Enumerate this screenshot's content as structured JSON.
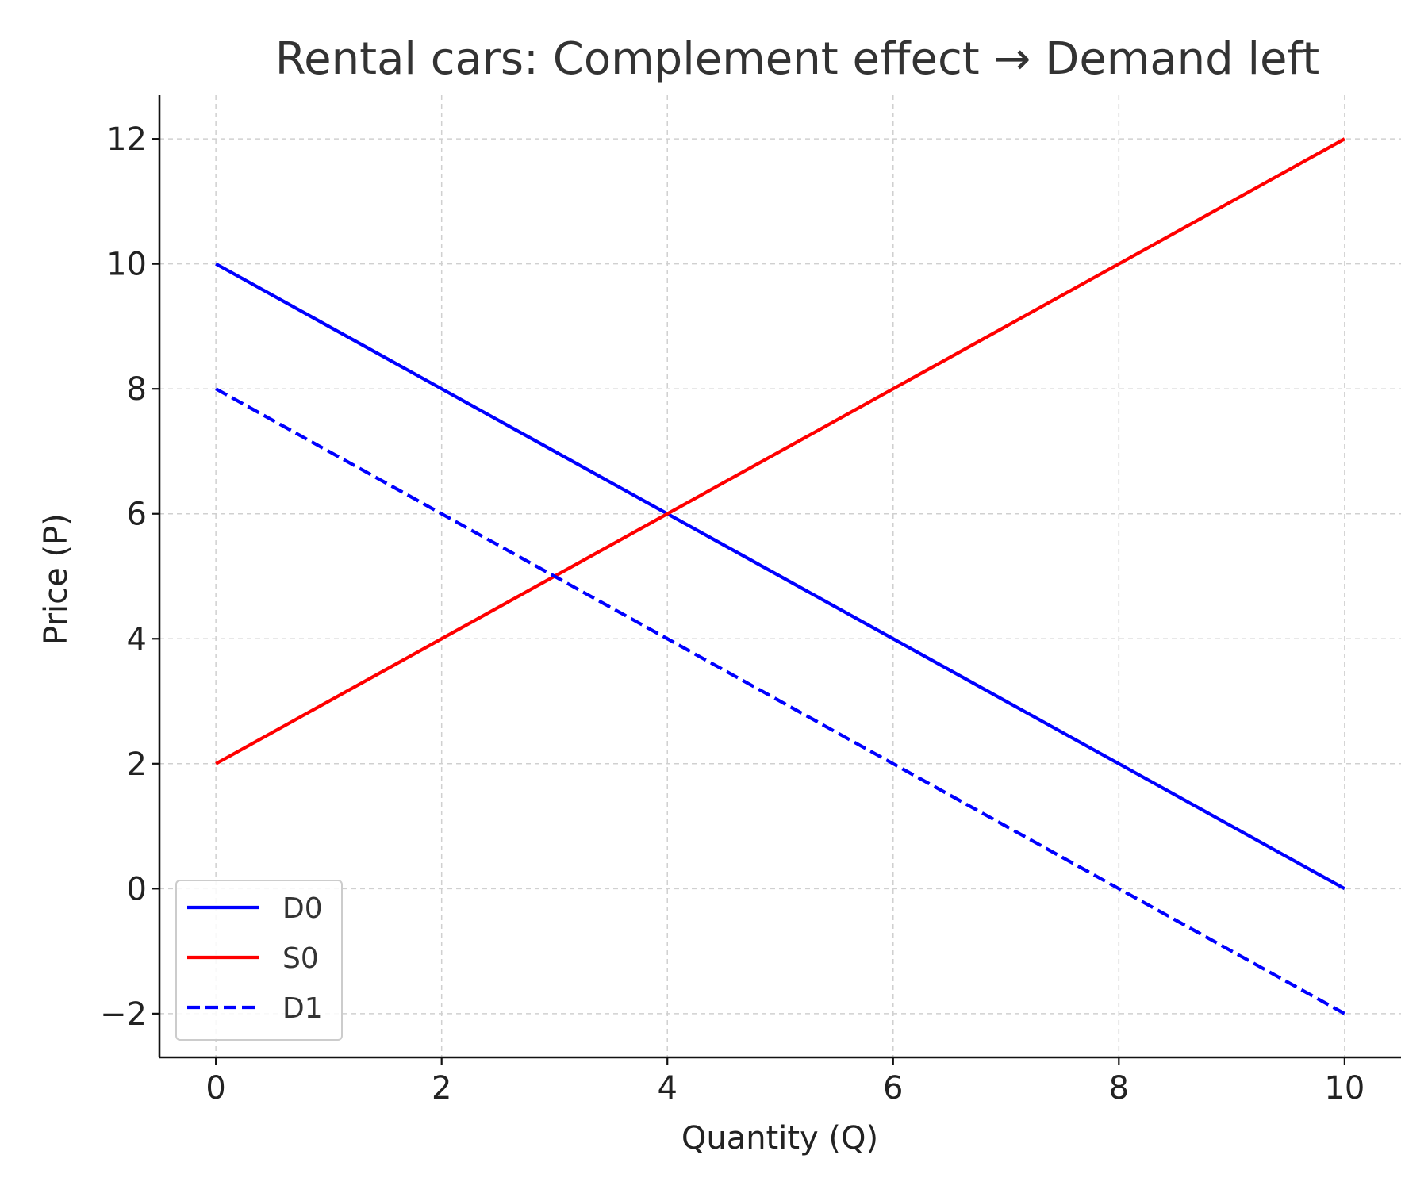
{
  "chart_data": {
    "type": "line",
    "title": "Rental cars: Complement effect → Demand left",
    "xlabel": "Quantity (Q)",
    "ylabel": "Price (P)",
    "xlim": [
      -0.5,
      10.5
    ],
    "ylim": [
      -2.7,
      12.7
    ],
    "xticks": [
      0,
      2,
      4,
      6,
      8,
      10
    ],
    "yticks": [
      -2,
      0,
      2,
      4,
      6,
      8,
      10,
      12
    ],
    "xtick_labels": [
      "0",
      "2",
      "4",
      "6",
      "8",
      "10"
    ],
    "ytick_labels": [
      "−2",
      "0",
      "2",
      "4",
      "6",
      "8",
      "10",
      "12"
    ],
    "grid": true,
    "legend_position": "lower-left",
    "series": [
      {
        "name": "D0",
        "style": "solid",
        "color": "#0000ff",
        "x": [
          0,
          2,
          4,
          6,
          8,
          10
        ],
        "y": [
          10,
          8,
          6,
          4,
          2,
          0
        ]
      },
      {
        "name": "S0",
        "style": "solid",
        "color": "#ff0000",
        "x": [
          0,
          2,
          4,
          6,
          8,
          10
        ],
        "y": [
          2,
          4,
          6,
          8,
          10,
          12
        ]
      },
      {
        "name": "D1",
        "style": "dashed",
        "color": "#0000ff",
        "x": [
          0,
          2,
          4,
          6,
          8,
          10
        ],
        "y": [
          8,
          6,
          4,
          2,
          0,
          -2
        ]
      }
    ]
  }
}
